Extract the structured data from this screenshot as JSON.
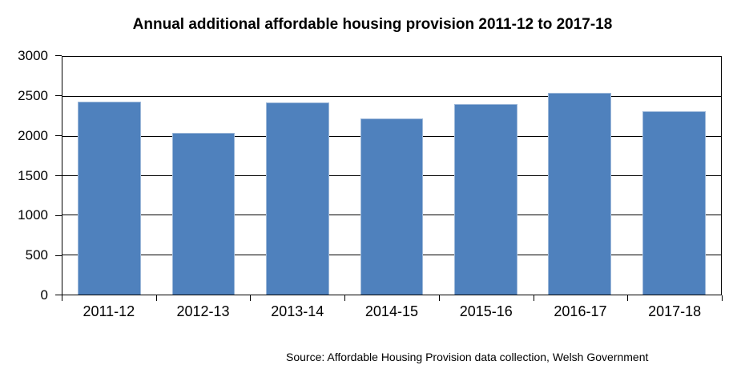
{
  "title": "Annual additional affordable housing provision 2011-12 to 2017-18",
  "source": "Source: Affordable Housing Provision data collection, Welsh Government",
  "colors": {
    "bar_fill": "#4f81bd",
    "bar_edge": "#9db8d9",
    "axis": "#000000",
    "background": "#ffffff",
    "text": "#000000"
  },
  "chart_data": {
    "type": "bar",
    "title": "Annual additional affordable housing provision 2011-12 to 2017-18",
    "categories": [
      "2011-12",
      "2012-13",
      "2013-14",
      "2014-15",
      "2015-16",
      "2016-17",
      "2017-18"
    ],
    "values": [
      2437,
      2042,
      2423,
      2218,
      2402,
      2547,
      2316
    ],
    "xlabel": "",
    "ylabel": "",
    "ylim": [
      0,
      3000
    ],
    "yticks": [
      0,
      500,
      1000,
      1500,
      2000,
      2500,
      3000
    ],
    "ytick_step": 500,
    "grid": true,
    "legend": false,
    "bar_color": "#4f81bd",
    "source": "Source: Affordable Housing Provision data collection, Welsh Government"
  }
}
